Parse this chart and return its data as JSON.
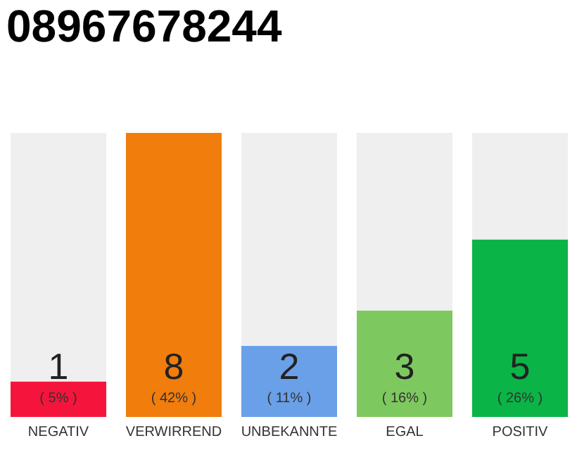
{
  "chart_data": {
    "type": "bar",
    "title": "08967678244",
    "tick_labels": false,
    "ylim": [
      0,
      8
    ],
    "stacked": true,
    "categories": [
      "NEGATIV",
      "VERWIRREND",
      "UNBEKANNTE",
      "EGAL",
      "POSITIV"
    ],
    "series": [
      {
        "colors": [
          "#f5143c",
          "#f07d0c",
          "#6aa0e8",
          "#7ec860",
          "#0ab446"
        ],
        "values": [
          1,
          8,
          2,
          3,
          5
        ],
        "value_labels": [
          "1",
          "8",
          "2",
          "3",
          "5"
        ]
      },
      {
        "color": "#efefef",
        "values": [
          7,
          0,
          6,
          5,
          3
        ]
      }
    ],
    "annotations": [
      "( 5% )",
      "( 42% )",
      "( 11% )",
      "( 16% )",
      "( 26% )"
    ],
    "grid": false
  }
}
